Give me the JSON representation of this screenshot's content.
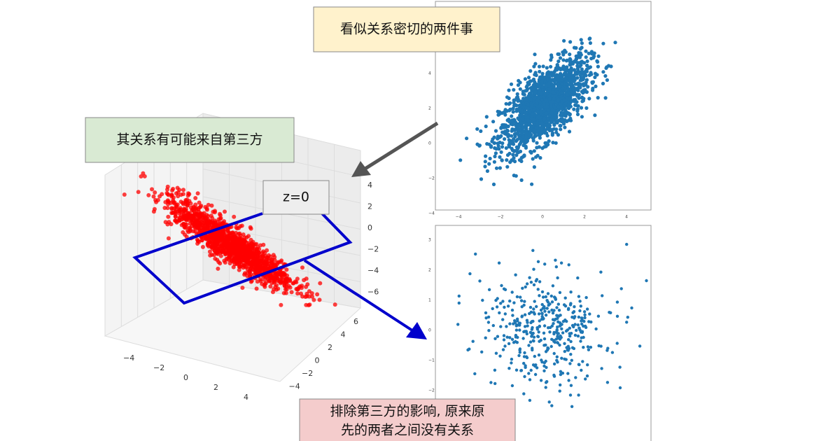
{
  "callouts": {
    "correlated": "看似关系密切的两件事",
    "third_party": "其关系有可能来自第三方",
    "plane": "z=0",
    "conclusion": [
      "排除第三方的影响, 原来原",
      "先的两者之间没有关系"
    ]
  },
  "plot3d": {
    "zticks": [
      "4",
      "2",
      "0",
      "−2",
      "−4",
      "−6"
    ],
    "yticks": [
      "6",
      "4",
      "2",
      "0",
      "−2",
      "−4"
    ],
    "xticks": [
      "−4",
      "−2",
      "0",
      "2",
      "4"
    ]
  },
  "top_scatter": {
    "yticks": [
      "4",
      "2",
      "0",
      "−2",
      "−4"
    ],
    "xticks": [
      "−4",
      "−2",
      "0",
      "2",
      "4"
    ]
  },
  "bottom_scatter": {
    "yticks": [
      "3",
      "2",
      "1",
      "0",
      "−1",
      "−2"
    ]
  }
}
